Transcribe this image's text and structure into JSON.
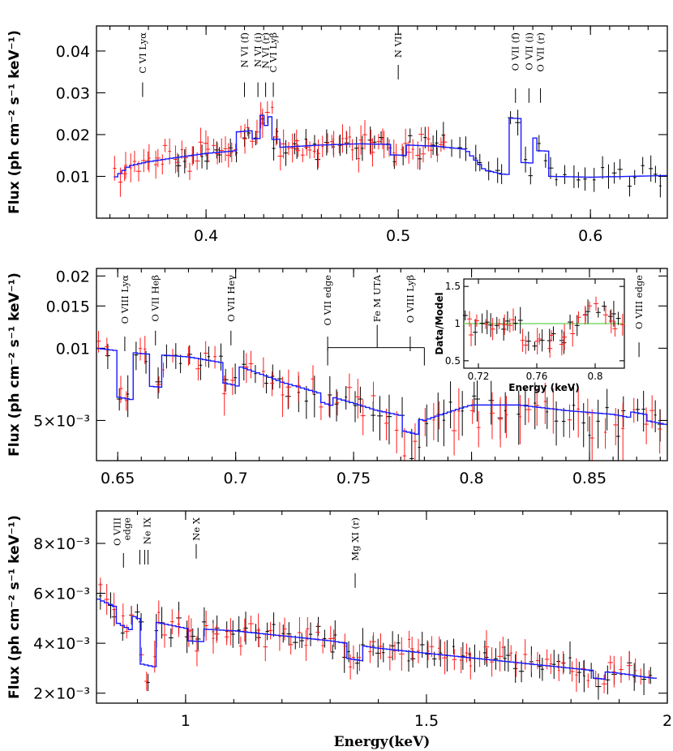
{
  "chart_data": [
    {
      "type": "scatter",
      "panel": "top",
      "xlabel": "",
      "ylabel": "Flux (ph cm$^{-2}$ s$^{-1}$ keV$^{-1}$)",
      "ylabel_text": "Flux (ph cm⁻² s⁻¹ keV⁻¹)",
      "xlim": [
        0.343,
        0.64
      ],
      "ylim": [
        0.0,
        0.046
      ],
      "xticks": [
        {
          "v": 0.4,
          "label": "0.4"
        },
        {
          "v": 0.5,
          "label": "0.5"
        },
        {
          "v": 0.6,
          "label": "0.6"
        }
      ],
      "yticks": [
        {
          "v": 0.01,
          "label": "0.01"
        },
        {
          "v": 0.02,
          "label": "0.02"
        },
        {
          "v": 0.03,
          "label": "0.03"
        },
        {
          "v": 0.04,
          "label": "0.04"
        }
      ],
      "annotations": [
        {
          "x": 0.367,
          "label": "C VI Lyα"
        },
        {
          "x": 0.42,
          "label": "N VI (f)"
        },
        {
          "x": 0.427,
          "label": "N VI (i)"
        },
        {
          "x": 0.431,
          "label": "N VI (r)"
        },
        {
          "x": 0.435,
          "label": "C VI Lyβ"
        },
        {
          "x": 0.5,
          "label": "N VII"
        },
        {
          "x": 0.561,
          "label": "O VII (f)"
        },
        {
          "x": 0.568,
          "label": "O VII (i)"
        },
        {
          "x": 0.574,
          "label": "O VII (r)"
        }
      ],
      "model_anchor": [
        [
          0.352,
          0.0095
        ],
        [
          0.36,
          0.0125
        ],
        [
          0.37,
          0.0135
        ],
        [
          0.38,
          0.0142
        ],
        [
          0.4,
          0.0155
        ],
        [
          0.42,
          0.0163
        ],
        [
          0.44,
          0.017
        ],
        [
          0.46,
          0.0175
        ],
        [
          0.48,
          0.0178
        ],
        [
          0.5,
          0.0176
        ],
        [
          0.52,
          0.0172
        ],
        [
          0.535,
          0.0165
        ],
        [
          0.545,
          0.0115
        ],
        [
          0.555,
          0.0105
        ],
        [
          0.58,
          0.01
        ],
        [
          0.6,
          0.0098
        ],
        [
          0.64,
          0.0102
        ]
      ],
      "model_features": [
        [
          0.42,
          0.0045
        ],
        [
          0.427,
          0.0025
        ],
        [
          0.431,
          0.0055
        ],
        [
          0.435,
          0.002
        ],
        [
          0.5,
          -0.0025
        ],
        [
          0.561,
          0.0135
        ],
        [
          0.568,
          0.003
        ],
        [
          0.574,
          0.006
        ]
      ],
      "series": [
        {
          "name": "",
          "color": "black",
          "seed": 11,
          "x_from": 0.385,
          "x_to": 0.64,
          "n": 70,
          "noise": 0.0022
        },
        {
          "name": "",
          "color": "red",
          "seed": 29,
          "x_from": 0.352,
          "x_to": 0.525,
          "n": 85,
          "noise": 0.0024
        }
      ]
    },
    {
      "type": "scatter",
      "panel": "middle",
      "xlabel": "",
      "ylabel_text": "Flux (ph cm⁻² s⁻¹ keV⁻¹)",
      "xlim": [
        0.641,
        0.883
      ],
      "ylim": [
        0.0034,
        0.0215
      ],
      "log": true,
      "xticks": [
        {
          "v": 0.65,
          "label": "0.65"
        },
        {
          "v": 0.7,
          "label": "0.7"
        },
        {
          "v": 0.75,
          "label": "0.75"
        },
        {
          "v": 0.8,
          "label": "0.8"
        },
        {
          "v": 0.85,
          "label": "0.85"
        }
      ],
      "yticks": [
        {
          "v": 0.005,
          "label": "5×10⁻³"
        },
        {
          "v": 0.01,
          "label": "0.01"
        },
        {
          "v": 0.015,
          "label": "0.015"
        },
        {
          "v": 0.02,
          "label": "0.02"
        }
      ],
      "annotations": [
        {
          "x": 0.653,
          "label": "O VIII Lyα"
        },
        {
          "x": 0.666,
          "label": "O VII Heβ"
        },
        {
          "x": 0.698,
          "label": "O VII Heγ"
        },
        {
          "x": 0.739,
          "label": "O VII edge"
        },
        {
          "x": 0.76,
          "label": "Fe M UTA",
          "bracket": [
            0.739,
            0.78
          ]
        },
        {
          "x": 0.774,
          "label": "O VIII Lyβ"
        },
        {
          "x": 0.871,
          "label": "O VIII edge"
        }
      ],
      "model_anchor": [
        [
          0.641,
          0.01
        ],
        [
          0.66,
          0.0095
        ],
        [
          0.68,
          0.0092
        ],
        [
          0.7,
          0.0085
        ],
        [
          0.72,
          0.0072
        ],
        [
          0.74,
          0.0063
        ],
        [
          0.76,
          0.0055
        ],
        [
          0.78,
          0.005
        ],
        [
          0.8,
          0.0058
        ],
        [
          0.82,
          0.0058
        ],
        [
          0.84,
          0.0055
        ],
        [
          0.86,
          0.0053
        ],
        [
          0.883,
          0.0048
        ]
      ],
      "model_features": [
        [
          0.653,
          -0.0035
        ],
        [
          0.666,
          -0.0025
        ],
        [
          0.698,
          -0.0015
        ],
        [
          0.739,
          -0.0005
        ],
        [
          0.774,
          -0.0007
        ],
        [
          0.871,
          0.0003
        ]
      ],
      "series": [
        {
          "name": "",
          "color": "black",
          "seed": 47,
          "x_from": 0.645,
          "x_to": 0.883,
          "n": 62,
          "noise": 0.0009
        },
        {
          "name": "",
          "color": "red",
          "seed": 83,
          "x_from": 0.641,
          "x_to": 0.883,
          "n": 60,
          "noise": 0.0009
        }
      ],
      "inset": {
        "xlabel": "Energy (keV)",
        "ylabel": "Data/Model",
        "xlim": [
          0.71,
          0.82
        ],
        "ylim": [
          0.4,
          1.6
        ],
        "xticks": [
          {
            "v": 0.72,
            "label": "0.72"
          },
          {
            "v": 0.76,
            "label": "0.76"
          },
          {
            "v": 0.8,
            "label": "0.8"
          }
        ],
        "yticks": [
          {
            "v": 0.5,
            "label": "0.5"
          },
          {
            "v": 1.0,
            "label": "1"
          },
          {
            "v": 1.5,
            "label": "1.5"
          }
        ],
        "reference_line": 1.0
      }
    },
    {
      "type": "scatter",
      "panel": "bottom",
      "xlabel": "Energy(keV)",
      "ylabel_text": "Flux (ph cm⁻² s⁻¹ keV⁻¹)",
      "xlim": [
        0.815,
        2.0
      ],
      "ylim": [
        0.0016,
        0.0093
      ],
      "xticks": [
        {
          "v": 1.0,
          "label": "1"
        },
        {
          "v": 1.5,
          "label": "1.5"
        },
        {
          "v": 2.0,
          "label": "2"
        }
      ],
      "yticks": [
        {
          "v": 0.002,
          "label": "2×10⁻³"
        },
        {
          "v": 0.004,
          "label": "4×10⁻³"
        },
        {
          "v": 0.006,
          "label": "6×10⁻³"
        },
        {
          "v": 0.008,
          "label": "8×10⁻³"
        }
      ],
      "annotations": [
        {
          "x": 0.871,
          "label": "O VIII edge",
          "lines": [
            "O VIII",
            "edge"
          ]
        },
        {
          "x": 0.92,
          "label": "Ne IX",
          "multi": [
            0.905,
            0.915,
            0.922
          ]
        },
        {
          "x": 1.022,
          "label": "Ne X"
        },
        {
          "x": 1.352,
          "label": "Mg XI (r)"
        }
      ],
      "model_anchor": [
        [
          0.815,
          0.0058
        ],
        [
          0.85,
          0.0055
        ],
        [
          0.9,
          0.005
        ],
        [
          0.95,
          0.0048
        ],
        [
          1.0,
          0.0046
        ],
        [
          1.1,
          0.0045
        ],
        [
          1.2,
          0.0043
        ],
        [
          1.3,
          0.0041
        ],
        [
          1.4,
          0.0038
        ],
        [
          1.5,
          0.0036
        ],
        [
          1.6,
          0.0034
        ],
        [
          1.7,
          0.0032
        ],
        [
          1.8,
          0.003
        ],
        [
          1.9,
          0.0028
        ],
        [
          1.97,
          0.0026
        ]
      ],
      "model_features": [
        [
          0.871,
          -0.0006
        ],
        [
          0.922,
          -0.0018
        ],
        [
          1.022,
          -0.0005
        ],
        [
          1.352,
          -0.0006
        ],
        [
          1.86,
          -0.0003
        ]
      ],
      "series": [
        {
          "name": "",
          "color": "black",
          "seed": 101,
          "x_from": 0.82,
          "x_to": 1.97,
          "n": 80,
          "noise": 0.00045
        },
        {
          "name": "",
          "color": "red",
          "seed": 139,
          "x_from": 0.82,
          "x_to": 1.97,
          "n": 85,
          "noise": 0.00045
        }
      ]
    }
  ]
}
